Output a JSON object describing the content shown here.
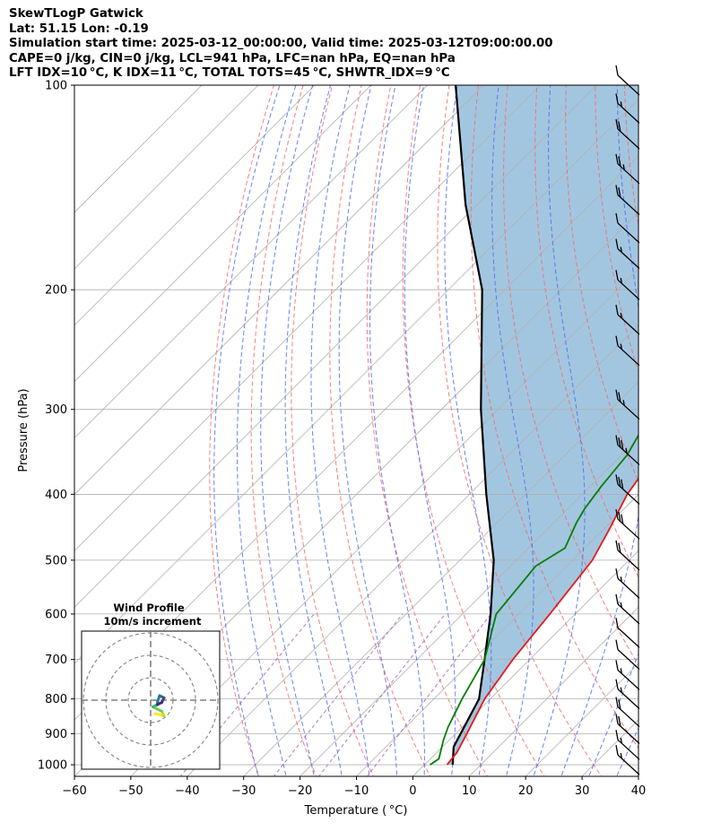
{
  "header": {
    "line1": "SkewTLogP Gatwick",
    "line2": "Lat: 51.15   Lon: -0.19",
    "line3": "Simulation start time: 2025-03-12_00:00:00, Valid time: 2025-03-12T09:00:00.00",
    "line4": "CAPE=0 j/kg, CIN=0 j/kg, LCL=941 hPa, LFC=nan hPa, EQ=nan hPa",
    "line5": "LFT IDX=10 °C, K IDX=11 °C, TOTAL TOTS=45 °C, SHWTR_IDX=9 °C"
  },
  "chart_data": {
    "type": "line",
    "xlabel": "Temperature ( °C)",
    "ylabel": "Pressure (hPa)",
    "xlim": [
      -60,
      40
    ],
    "ylim": [
      1040,
      100
    ],
    "y_scale": "log",
    "skew": true,
    "grid": true,
    "x_ticks": [
      -60,
      -50,
      -40,
      -30,
      -20,
      -10,
      0,
      10,
      20,
      30,
      40
    ],
    "x_tick_labels": [
      "−60",
      "−50",
      "−40",
      "−30",
      "−20",
      "−10",
      "0",
      "10",
      "20",
      "30",
      "40"
    ],
    "y_ticks": [
      100,
      200,
      300,
      400,
      500,
      600,
      700,
      800,
      900,
      1000
    ],
    "y_tick_labels": [
      "100",
      "200",
      "300",
      "400",
      "500",
      "600",
      "700",
      "800",
      "900",
      "1000"
    ],
    "colors": {
      "temperature": "#e31a1c",
      "dewpoint": "#008000",
      "parcel": "#000000",
      "fill": "#a3c6e0",
      "dry_adiabats": "#f26a6a",
      "moist_adiabats": "#4d6bf2",
      "mixing_ratio": "#9b59b6",
      "grid": "#b0b0b0"
    },
    "series": [
      {
        "name": "Temperature",
        "points": [
          [
            4,
            1000
          ],
          [
            3.6,
            960
          ],
          [
            2,
            900
          ],
          [
            -1,
            800
          ],
          [
            -3,
            700
          ],
          [
            -4.5,
            600
          ],
          [
            -6.5,
            500
          ],
          [
            -9,
            450
          ],
          [
            -12,
            400
          ],
          [
            -14,
            350
          ],
          [
            -15.5,
            310
          ],
          [
            -14,
            290
          ],
          [
            -12,
            270
          ],
          [
            -9,
            250
          ],
          [
            -4,
            220
          ],
          [
            -1,
            200
          ],
          [
            2,
            180
          ],
          [
            6,
            160
          ],
          [
            8,
            145
          ],
          [
            9,
            130
          ],
          [
            9.5,
            120
          ],
          [
            10,
            110
          ],
          [
            10.5,
            100
          ]
        ]
      },
      {
        "name": "Dewpoint",
        "points": [
          [
            1,
            1000
          ],
          [
            1.5,
            980
          ],
          [
            -1,
            920
          ],
          [
            -2.5,
            880
          ],
          [
            -5,
            800
          ],
          [
            -8,
            700
          ],
          [
            -14,
            600
          ],
          [
            -15.5,
            510
          ],
          [
            -13.5,
            480
          ],
          [
            -16,
            440
          ],
          [
            -17,
            420
          ],
          [
            -18,
            390
          ],
          [
            -19,
            350
          ],
          [
            -21,
            320
          ],
          [
            -23,
            290
          ],
          [
            -24.5,
            270
          ],
          [
            -25.5,
            240
          ],
          [
            -27,
            200
          ],
          [
            -28,
            180
          ],
          [
            -30,
            160
          ],
          [
            -35,
            130
          ],
          [
            -39,
            110
          ],
          [
            -41,
            100
          ]
        ]
      },
      {
        "name": "Parcel",
        "points": [
          [
            5,
            1000
          ],
          [
            2,
            941
          ],
          [
            -2,
            800
          ],
          [
            -8,
            700
          ],
          [
            -15,
            600
          ],
          [
            -24,
            500
          ],
          [
            -37,
            400
          ],
          [
            -53,
            300
          ],
          [
            -74,
            200
          ],
          [
            -92,
            150
          ],
          [
            -115,
            100
          ]
        ]
      }
    ],
    "wind_barbs": [
      {
        "p": 1000,
        "spd_kt": 15
      },
      {
        "p": 950,
        "spd_kt": 15
      },
      {
        "p": 900,
        "spd_kt": 20
      },
      {
        "p": 850,
        "spd_kt": 20
      },
      {
        "p": 800,
        "spd_kt": 15
      },
      {
        "p": 750,
        "spd_kt": 15
      },
      {
        "p": 700,
        "spd_kt": 10
      },
      {
        "p": 650,
        "spd_kt": 10
      },
      {
        "p": 600,
        "spd_kt": 15
      },
      {
        "p": 550,
        "spd_kt": 15
      },
      {
        "p": 500,
        "spd_kt": 20
      },
      {
        "p": 450,
        "spd_kt": 30
      },
      {
        "p": 400,
        "spd_kt": 30
      },
      {
        "p": 350,
        "spd_kt": 35
      },
      {
        "p": 300,
        "spd_kt": 25
      },
      {
        "p": 250,
        "spd_kt": 15
      },
      {
        "p": 225,
        "spd_kt": 15
      },
      {
        "p": 200,
        "spd_kt": 15
      },
      {
        "p": 180,
        "spd_kt": 15
      },
      {
        "p": 165,
        "spd_kt": 10
      },
      {
        "p": 150,
        "spd_kt": 20
      },
      {
        "p": 135,
        "spd_kt": 25
      },
      {
        "p": 120,
        "spd_kt": 20
      },
      {
        "p": 110,
        "spd_kt": 15
      },
      {
        "p": 100,
        "spd_kt": 10
      }
    ],
    "hodograph": {
      "title_line1": "Wind Profile",
      "title_line2": "10m/s increment",
      "rings": [
        10,
        20,
        30
      ],
      "trace": [
        [
          2,
          -6
        ],
        [
          6,
          -7
        ],
        [
          5,
          -5
        ],
        [
          1,
          -3
        ],
        [
          3,
          -2
        ],
        [
          3,
          -1
        ],
        [
          4,
          2
        ],
        [
          6,
          1
        ],
        [
          5,
          -1
        ],
        [
          3,
          -2
        ]
      ]
    }
  }
}
